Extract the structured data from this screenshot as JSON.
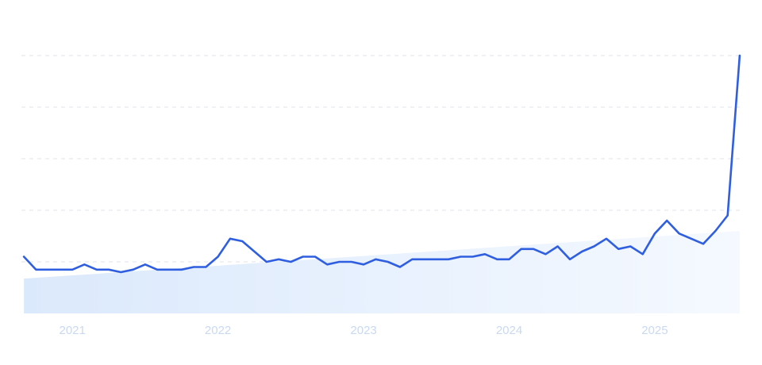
{
  "colors": {
    "line": "#2f5fe0",
    "trend_area_start": "#dbe9fc",
    "trend_area_end": "#f5f9ff",
    "tick_label": "#c9d9f2",
    "gridline": "#dfe3ea"
  },
  "chart_data": {
    "type": "line",
    "title": "",
    "xlabel": "",
    "ylabel": "",
    "x_tick_labels": [
      "2021",
      "2022",
      "2023",
      "2024",
      "2025"
    ],
    "x_tick_positions": [
      2021,
      2022,
      2023,
      2024,
      2025
    ],
    "x_range": [
      2020.65,
      2025.6
    ],
    "ylim": [
      0,
      100
    ],
    "y_gridlines": [
      20,
      40,
      60,
      80,
      100
    ],
    "y_tick_labels_visible": false,
    "grid": true,
    "legend": "none",
    "series": [
      {
        "values_x": [
          2020.667,
          2020.75,
          2020.833,
          2020.917,
          2021.0,
          2021.083,
          2021.167,
          2021.25,
          2021.333,
          2021.417,
          2021.5,
          2021.583,
          2021.667,
          2021.75,
          2021.833,
          2021.917,
          2022.0,
          2022.083,
          2022.167,
          2022.25,
          2022.333,
          2022.417,
          2022.5,
          2022.583,
          2022.667,
          2022.75,
          2022.833,
          2022.917,
          2023.0,
          2023.083,
          2023.167,
          2023.25,
          2023.333,
          2023.417,
          2023.5,
          2023.583,
          2023.667,
          2023.75,
          2023.833,
          2023.917,
          2024.0,
          2024.083,
          2024.167,
          2024.25,
          2024.333,
          2024.417,
          2024.5,
          2024.583,
          2024.667,
          2024.75,
          2024.833,
          2024.917,
          2025.0,
          2025.083,
          2025.167,
          2025.25,
          2025.333,
          2025.417,
          2025.5,
          2025.583
        ],
        "values": [
          22,
          17,
          17,
          17,
          17,
          19,
          17,
          17,
          16,
          17,
          19,
          17,
          17,
          17,
          18,
          18,
          22,
          29,
          28,
          24,
          20,
          21,
          20,
          22,
          22,
          19,
          20,
          20,
          19,
          21,
          20,
          18,
          21,
          21,
          21,
          21,
          22,
          22,
          23,
          21,
          21,
          25,
          25,
          23,
          26,
          21,
          24,
          26,
          29,
          25,
          26,
          23,
          31,
          36,
          31,
          29,
          27,
          32,
          38,
          100
        ]
      }
    ],
    "trend_area": {
      "x": [
        2020.667,
        2025.583
      ],
      "y": [
        13.5,
        32
      ]
    }
  }
}
